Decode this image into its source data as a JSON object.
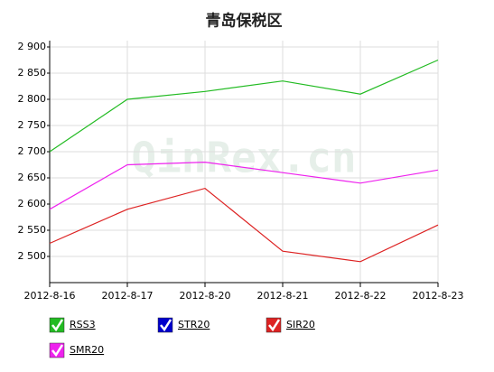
{
  "chart_data": {
    "type": "line",
    "title": "青岛保税区",
    "watermark": "QinRex.cn",
    "categories": [
      "2012-8-16",
      "2012-8-17",
      "2012-8-20",
      "2012-8-21",
      "2012-8-22",
      "2012-8-23"
    ],
    "series": [
      {
        "name": "RSS3",
        "color": "#22bb22",
        "values": [
          2700,
          2800,
          2815,
          2835,
          2810,
          2875
        ]
      },
      {
        "name": "STR20",
        "color": "#0000cc",
        "values": [
          null,
          null,
          null,
          null,
          null,
          null
        ]
      },
      {
        "name": "SIR20",
        "color": "#dd2222",
        "values": [
          2525,
          2590,
          2630,
          2510,
          2490,
          2560
        ]
      },
      {
        "name": "SMR20",
        "color": "#ee22ee",
        "values": [
          2590,
          2675,
          2680,
          2660,
          2640,
          2665
        ]
      }
    ],
    "ylim": [
      2450,
      2900
    ],
    "yticks": [
      {
        "value": 2500,
        "label": "2 500"
      },
      {
        "value": 2550,
        "label": "2 550"
      },
      {
        "value": 2600,
        "label": "2 600"
      },
      {
        "value": 2650,
        "label": "2 650"
      },
      {
        "value": 2700,
        "label": "2 700"
      },
      {
        "value": 2750,
        "label": "2 750"
      },
      {
        "value": 2800,
        "label": "2 800"
      },
      {
        "value": 2850,
        "label": "2 850"
      },
      {
        "value": 2900,
        "label": "2 900"
      }
    ],
    "grid": true
  }
}
